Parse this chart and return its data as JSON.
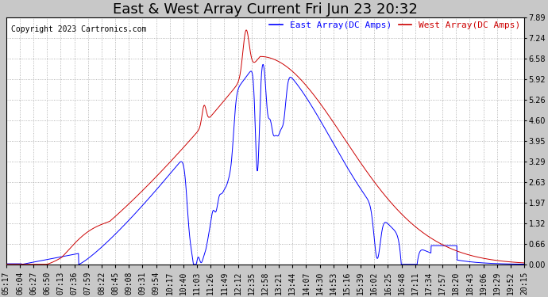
{
  "title": "East & West Array Current Fri Jun 23 20:32",
  "copyright": "Copyright 2023 Cartronics.com",
  "legend_east": "East Array(DC Amps)",
  "legend_west": "West Array(DC Amps)",
  "east_color": "#0000ff",
  "west_color": "#cc0000",
  "background_color": "#c8c8c8",
  "plot_background": "#ffffff",
  "grid_color": "#999999",
  "ylim": [
    0.0,
    7.89
  ],
  "yticks": [
    0.0,
    0.66,
    1.32,
    1.97,
    2.63,
    3.29,
    3.95,
    4.6,
    5.26,
    5.92,
    6.58,
    7.24,
    7.89
  ],
  "xtick_labels": [
    "05:17",
    "06:04",
    "06:27",
    "06:50",
    "07:13",
    "07:36",
    "07:59",
    "08:22",
    "08:45",
    "09:08",
    "09:31",
    "09:54",
    "10:17",
    "10:40",
    "11:03",
    "11:26",
    "11:49",
    "12:12",
    "12:35",
    "12:58",
    "13:21",
    "13:44",
    "14:07",
    "14:30",
    "14:53",
    "15:16",
    "15:39",
    "16:02",
    "16:25",
    "16:48",
    "17:11",
    "17:34",
    "17:57",
    "18:20",
    "18:43",
    "19:06",
    "19:29",
    "19:52",
    "20:15"
  ],
  "title_fontsize": 13,
  "label_fontsize": 8,
  "tick_fontsize": 7,
  "copyright_fontsize": 7
}
